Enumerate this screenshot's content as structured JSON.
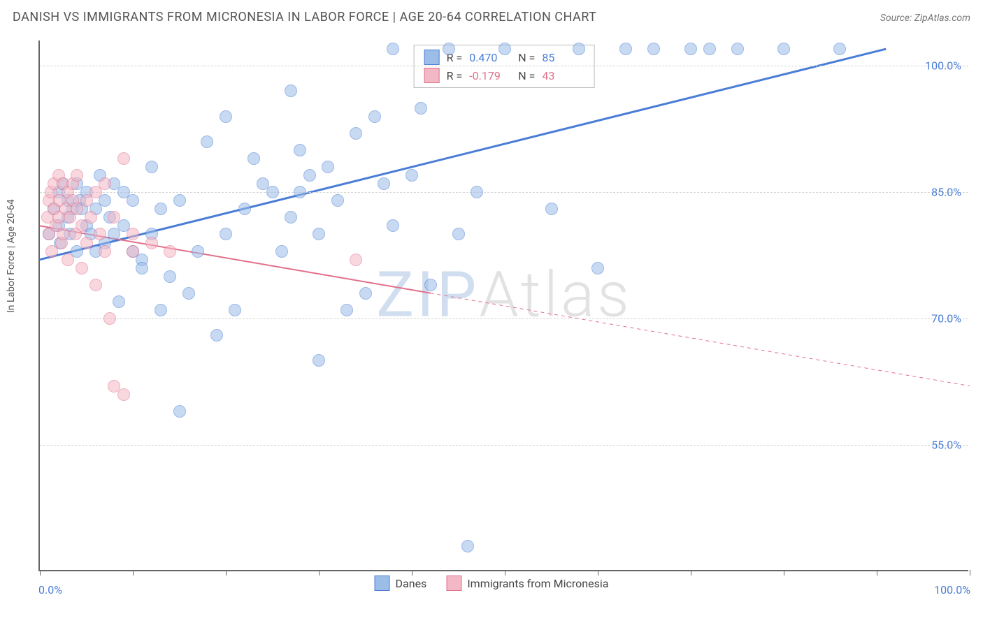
{
  "title": "DANISH VS IMMIGRANTS FROM MICRONESIA IN LABOR FORCE | AGE 20-64 CORRELATION CHART",
  "source": "Source: ZipAtlas.com",
  "y_axis_label": "In Labor Force | Age 20-64",
  "watermark": {
    "first": "ZIP",
    "rest": "Atlas"
  },
  "chart": {
    "type": "scatter",
    "background_color": "#ffffff",
    "grid_color": "#d5d5d5",
    "axis_color": "#666666",
    "xlim": [
      0,
      100
    ],
    "ylim": [
      40,
      103
    ],
    "x_ticks": [
      0,
      10,
      20,
      30,
      40,
      50,
      60,
      70,
      80,
      90,
      100
    ],
    "x_tick_labels": {
      "min": "0.0%",
      "max": "100.0%"
    },
    "y_gridlines": [
      55,
      70,
      85,
      100
    ],
    "y_tick_labels": [
      "55.0%",
      "70.0%",
      "85.0%",
      "100.0%"
    ],
    "tick_label_color": "#4a7dd6",
    "tick_label_fontsize": 16,
    "marker_radius": 9,
    "marker_opacity": 0.55,
    "series": [
      {
        "name": "Danes",
        "color_fill": "#9bbde8",
        "color_stroke": "#4a7dd6",
        "r_label": "R =",
        "r_value": "0.470",
        "n_label": "N =",
        "n_value": "85",
        "trend": {
          "x1": 0,
          "y1": 77,
          "x2": 91,
          "y2": 102,
          "width": 3,
          "dash_after_x": null
        },
        "points": [
          [
            1,
            80
          ],
          [
            1.5,
            83
          ],
          [
            2,
            81
          ],
          [
            2,
            85
          ],
          [
            2.2,
            79
          ],
          [
            2.5,
            86
          ],
          [
            3,
            82
          ],
          [
            3,
            84
          ],
          [
            3.2,
            80
          ],
          [
            3.5,
            83
          ],
          [
            4,
            86
          ],
          [
            4,
            78
          ],
          [
            4.3,
            84
          ],
          [
            4.5,
            83
          ],
          [
            5,
            81
          ],
          [
            5,
            85
          ],
          [
            5.5,
            80
          ],
          [
            6,
            83
          ],
          [
            6,
            78
          ],
          [
            6.5,
            87
          ],
          [
            7,
            79
          ],
          [
            7,
            84
          ],
          [
            7.5,
            82
          ],
          [
            8,
            80
          ],
          [
            8,
            86
          ],
          [
            8.5,
            72
          ],
          [
            9,
            85
          ],
          [
            9,
            81
          ],
          [
            10,
            78
          ],
          [
            10,
            84
          ],
          [
            11,
            77
          ],
          [
            11,
            76
          ],
          [
            12,
            88
          ],
          [
            12,
            80
          ],
          [
            13,
            71
          ],
          [
            13,
            83
          ],
          [
            14,
            75
          ],
          [
            15,
            84
          ],
          [
            15,
            59
          ],
          [
            16,
            73
          ],
          [
            17,
            78
          ],
          [
            18,
            91
          ],
          [
            19,
            68
          ],
          [
            20,
            80
          ],
          [
            20,
            94
          ],
          [
            21,
            71
          ],
          [
            22,
            83
          ],
          [
            23,
            89
          ],
          [
            24,
            86
          ],
          [
            25,
            85
          ],
          [
            26,
            78
          ],
          [
            27,
            82
          ],
          [
            28,
            90
          ],
          [
            28,
            85
          ],
          [
            29,
            87
          ],
          [
            30,
            80
          ],
          [
            30,
            65
          ],
          [
            31,
            88
          ],
          [
            32,
            84
          ],
          [
            33,
            71
          ],
          [
            34,
            92
          ],
          [
            35,
            73
          ],
          [
            36,
            94
          ],
          [
            37,
            86
          ],
          [
            38,
            81
          ],
          [
            40,
            87
          ],
          [
            41,
            95
          ],
          [
            42,
            74
          ],
          [
            44,
            102
          ],
          [
            45,
            80
          ],
          [
            46,
            43
          ],
          [
            47,
            85
          ],
          [
            50,
            102
          ],
          [
            55,
            83
          ],
          [
            58,
            102
          ],
          [
            60,
            76
          ],
          [
            63,
            102
          ],
          [
            66,
            102
          ],
          [
            70,
            102
          ],
          [
            72,
            102
          ],
          [
            75,
            102
          ],
          [
            80,
            102
          ],
          [
            86,
            102
          ],
          [
            27,
            97
          ],
          [
            38,
            102
          ]
        ]
      },
      {
        "name": "Immigrants from Micronesia",
        "color_fill": "#f3b8c5",
        "color_stroke": "#e36f8a",
        "r_label": "R =",
        "r_value": "-0.179",
        "n_label": "N =",
        "n_value": "43",
        "trend": {
          "x1": 0,
          "y1": 81,
          "x2": 100,
          "y2": 62,
          "width": 2,
          "dash_after_x": 42
        },
        "points": [
          [
            0.8,
            82
          ],
          [
            1,
            80
          ],
          [
            1,
            84
          ],
          [
            1.2,
            85
          ],
          [
            1.3,
            78
          ],
          [
            1.5,
            86
          ],
          [
            1.5,
            83
          ],
          [
            1.7,
            81
          ],
          [
            2,
            87
          ],
          [
            2,
            82
          ],
          [
            2.1,
            84
          ],
          [
            2.3,
            79
          ],
          [
            2.5,
            86
          ],
          [
            2.5,
            80
          ],
          [
            2.8,
            83
          ],
          [
            3,
            85
          ],
          [
            3,
            77
          ],
          [
            3.2,
            82
          ],
          [
            3.5,
            86
          ],
          [
            3.5,
            84
          ],
          [
            3.8,
            80
          ],
          [
            4,
            83
          ],
          [
            4,
            87
          ],
          [
            4.5,
            81
          ],
          [
            4.5,
            76
          ],
          [
            5,
            84
          ],
          [
            5,
            79
          ],
          [
            5.5,
            82
          ],
          [
            6,
            85
          ],
          [
            6,
            74
          ],
          [
            6.5,
            80
          ],
          [
            7,
            86
          ],
          [
            7,
            78
          ],
          [
            7.5,
            70
          ],
          [
            8,
            82
          ],
          [
            8,
            62
          ],
          [
            9,
            89
          ],
          [
            9,
            61
          ],
          [
            10,
            80
          ],
          [
            10,
            78
          ],
          [
            12,
            79
          ],
          [
            14,
            78
          ],
          [
            34,
            77
          ]
        ]
      }
    ],
    "legend": {
      "items": [
        "Danes",
        "Immigrants from Micronesia"
      ]
    }
  }
}
